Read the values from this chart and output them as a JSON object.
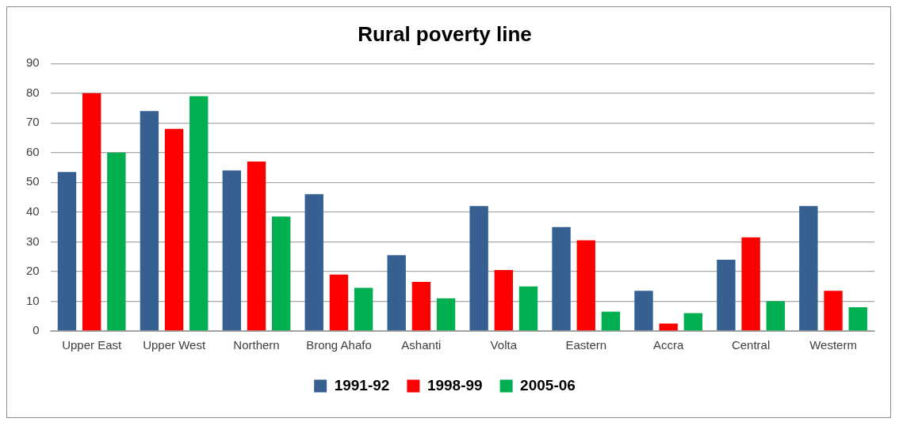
{
  "chart_data": {
    "type": "bar",
    "title": "Rural poverty line",
    "categories": [
      "Upper East",
      "Upper West",
      "Northern",
      "Brong Ahafo",
      "Ashanti",
      "Volta",
      "Eastern",
      "Accra",
      "Central",
      "Westerm"
    ],
    "series": [
      {
        "name": "1991-92",
        "color": "#376092",
        "values": [
          53.5,
          74,
          54,
          46,
          25.5,
          42,
          35,
          13.5,
          24,
          42
        ]
      },
      {
        "name": "1998-99",
        "color": "#ff0000",
        "values": [
          80,
          68,
          57,
          19,
          16.5,
          20.5,
          30.5,
          2.5,
          31.5,
          13.5
        ]
      },
      {
        "name": "2005-06",
        "color": "#00b050",
        "values": [
          60,
          79,
          38.5,
          14.5,
          11,
          15,
          6.5,
          6,
          10,
          8
        ]
      }
    ],
    "ylim": [
      0,
      90
    ],
    "yticks": [
      0,
      10,
      20,
      30,
      40,
      50,
      60,
      70,
      80,
      90
    ],
    "grid": "y",
    "legend": "bottom"
  }
}
